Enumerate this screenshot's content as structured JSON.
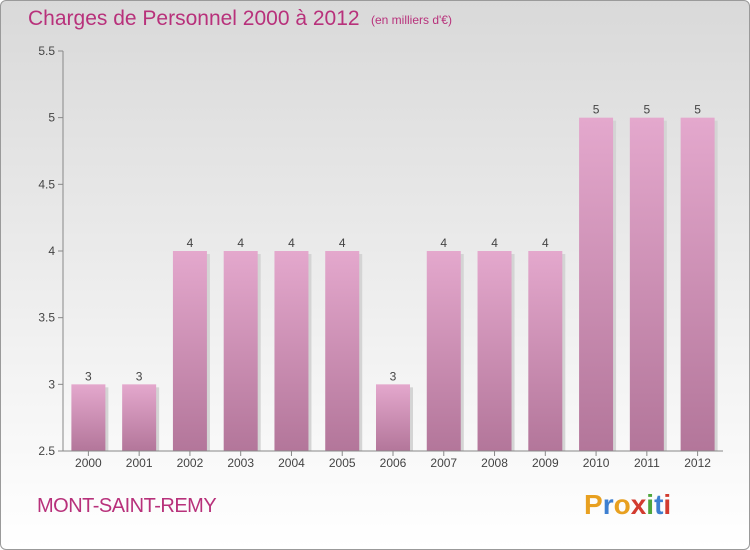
{
  "header": {
    "title": "Charges de Personnel 2000 à 2012",
    "subtitle": "(en milliers d'€)"
  },
  "footer": {
    "commune": "MONT-SAINT-REMY",
    "logo_text": "Proxiti"
  },
  "colors": {
    "title": "#b8317b",
    "bar_top": "#e4a8cd",
    "bar_bottom": "#b3769a",
    "logo_letters": [
      "#e8a020",
      "#3d7fd0",
      "#e8a020",
      "#d23b2f",
      "#4fa63b",
      "#3d7fd0",
      "#d23b2f"
    ]
  },
  "chart_data": {
    "type": "bar",
    "title": "Charges de Personnel 2000 à 2012",
    "subtitle": "(en milliers d'€)",
    "categories": [
      "2000",
      "2001",
      "2002",
      "2003",
      "2004",
      "2005",
      "2006",
      "2007",
      "2008",
      "2009",
      "2010",
      "2011",
      "2012"
    ],
    "values": [
      3,
      3,
      4,
      4,
      4,
      4,
      3,
      4,
      4,
      4,
      5,
      5,
      5
    ],
    "data_labels": [
      "3",
      "3",
      "4",
      "4",
      "4",
      "4",
      "3",
      "4",
      "4",
      "4",
      "5",
      "5",
      "5"
    ],
    "yticks": [
      "2.5",
      "3",
      "3.5",
      "4",
      "4.5",
      "5",
      "5.5"
    ],
    "ylim": [
      2.5,
      5.5
    ],
    "xlabel": "",
    "ylabel": "",
    "grid": false,
    "legend": "none"
  }
}
